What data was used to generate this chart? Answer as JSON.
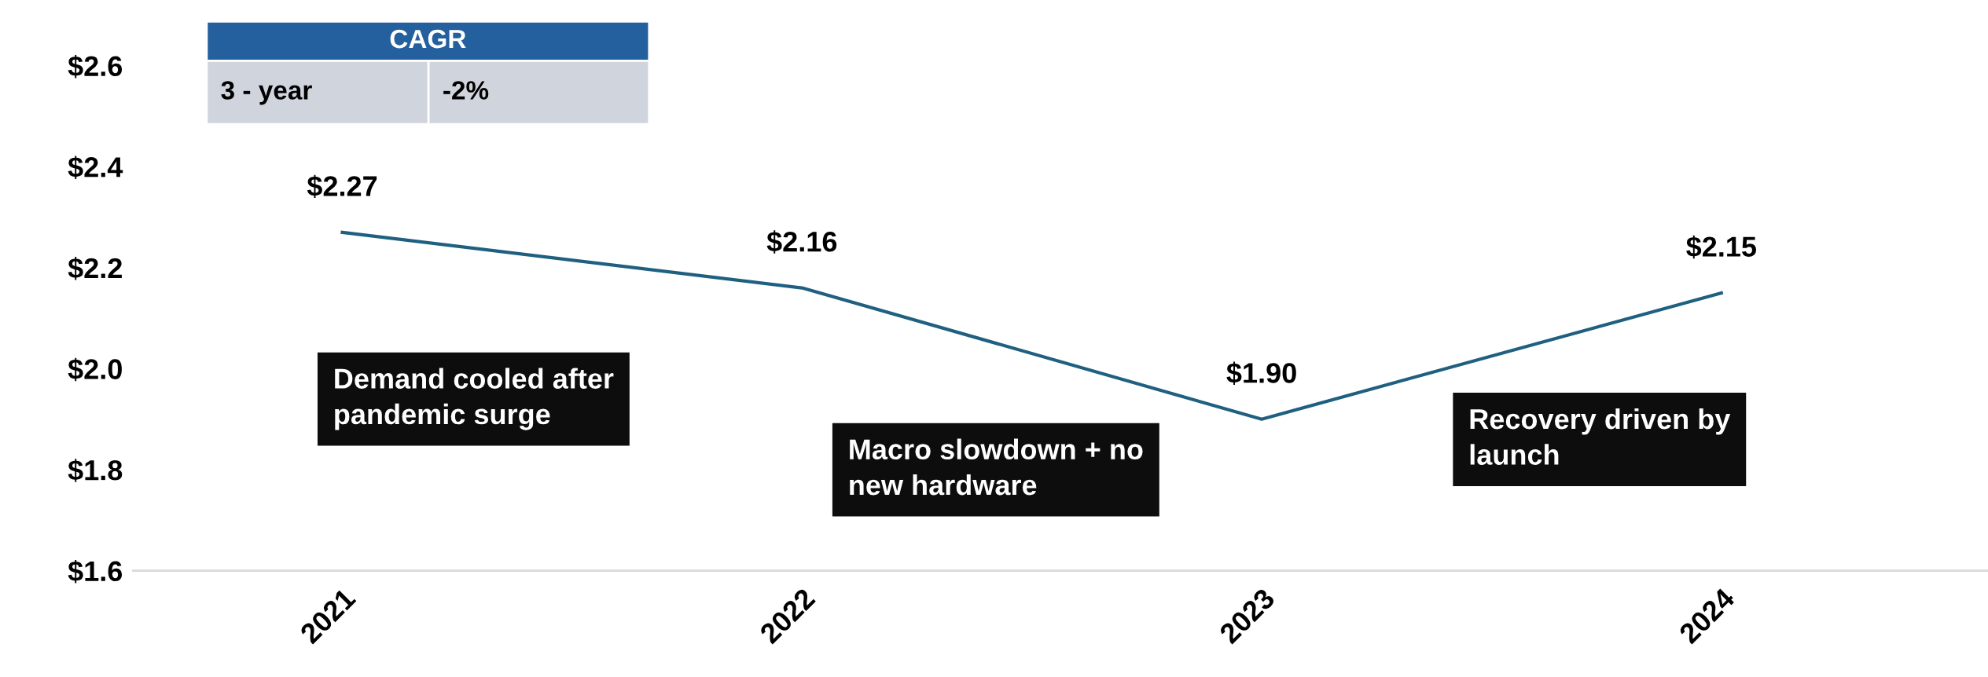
{
  "chart_data": {
    "type": "line",
    "categories": [
      "2021",
      "2022",
      "2023",
      "2024"
    ],
    "series": [
      {
        "color": "#1f6080",
        "values": [
          2.27,
          2.16,
          1.9,
          2.15
        ],
        "value_labels": [
          "$2.27",
          "$2.16",
          "$1.90",
          "$2.15"
        ]
      }
    ],
    "ylim": [
      1.6,
      2.6
    ],
    "yticks": [
      {
        "value": 1.6,
        "label": "$1.6"
      },
      {
        "value": 1.8,
        "label": "$1.8"
      },
      {
        "value": 2.0,
        "label": "$2.0"
      },
      {
        "value": 2.2,
        "label": "$2.2"
      },
      {
        "value": 2.4,
        "label": "$2.4"
      },
      {
        "value": 2.6,
        "label": "$2.6"
      }
    ],
    "grid": false,
    "marker": "none",
    "line_style": "solid",
    "annotations": [
      "CAGR",
      "3 - year",
      "-2%",
      "Demand cooled after\npandemic surge",
      "Macro slowdown + no\nnew hardware",
      "Recovery driven by\nlaunch"
    ]
  }
}
